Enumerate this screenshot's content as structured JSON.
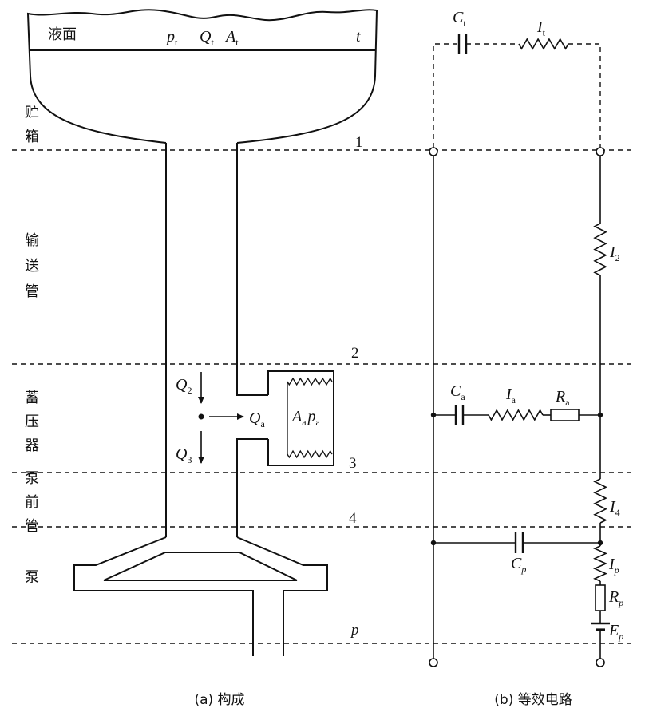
{
  "panel_a": {
    "surface_label": "液面",
    "tank_params": {
      "pt": {
        "main": "p",
        "sub": "t"
      },
      "qt": {
        "main": "Q",
        "sub": "t"
      },
      "at": {
        "main": "A",
        "sub": "t"
      },
      "t": "t"
    },
    "sections": {
      "tank": "贮箱",
      "pipe": "输送管",
      "accumulator": "蓄压器",
      "pre_pump_pipe": "泵前管",
      "pump": "泵"
    },
    "stations": {
      "s1": "1",
      "s2": "2",
      "s3": "3",
      "s4": "4",
      "sp": "p"
    },
    "flows": {
      "q2": {
        "main": "Q",
        "sub": "2"
      },
      "qa": {
        "main": "Q",
        "sub": "a"
      },
      "q3": {
        "main": "Q",
        "sub": "3"
      }
    },
    "accumulator_params": {
      "aa": {
        "main": "A",
        "sub": "a"
      },
      "pa": {
        "main": "p",
        "sub": "a"
      }
    },
    "caption": "(a) 构成"
  },
  "panel_b": {
    "tank_branch": {
      "ct": {
        "main": "C",
        "sub": "t"
      },
      "it": {
        "main": "I",
        "sub": "t"
      }
    },
    "pipe_inductance": {
      "main": "I",
      "sub": "2"
    },
    "accumulator_branch": {
      "ca": {
        "main": "C",
        "sub": "a"
      },
      "ia": {
        "main": "I",
        "sub": "a"
      },
      "ra": {
        "main": "R",
        "sub": "a"
      }
    },
    "pre_pump_inductance": {
      "main": "I",
      "sub": "4"
    },
    "pump_branch": {
      "cp": {
        "main": "C",
        "sub": "p"
      },
      "ip": {
        "main": "I",
        "sub": "p"
      },
      "rp": {
        "main": "R",
        "sub": "p"
      },
      "ep": {
        "main": "E",
        "sub": "p"
      }
    },
    "caption": "(b) 等效电路"
  }
}
